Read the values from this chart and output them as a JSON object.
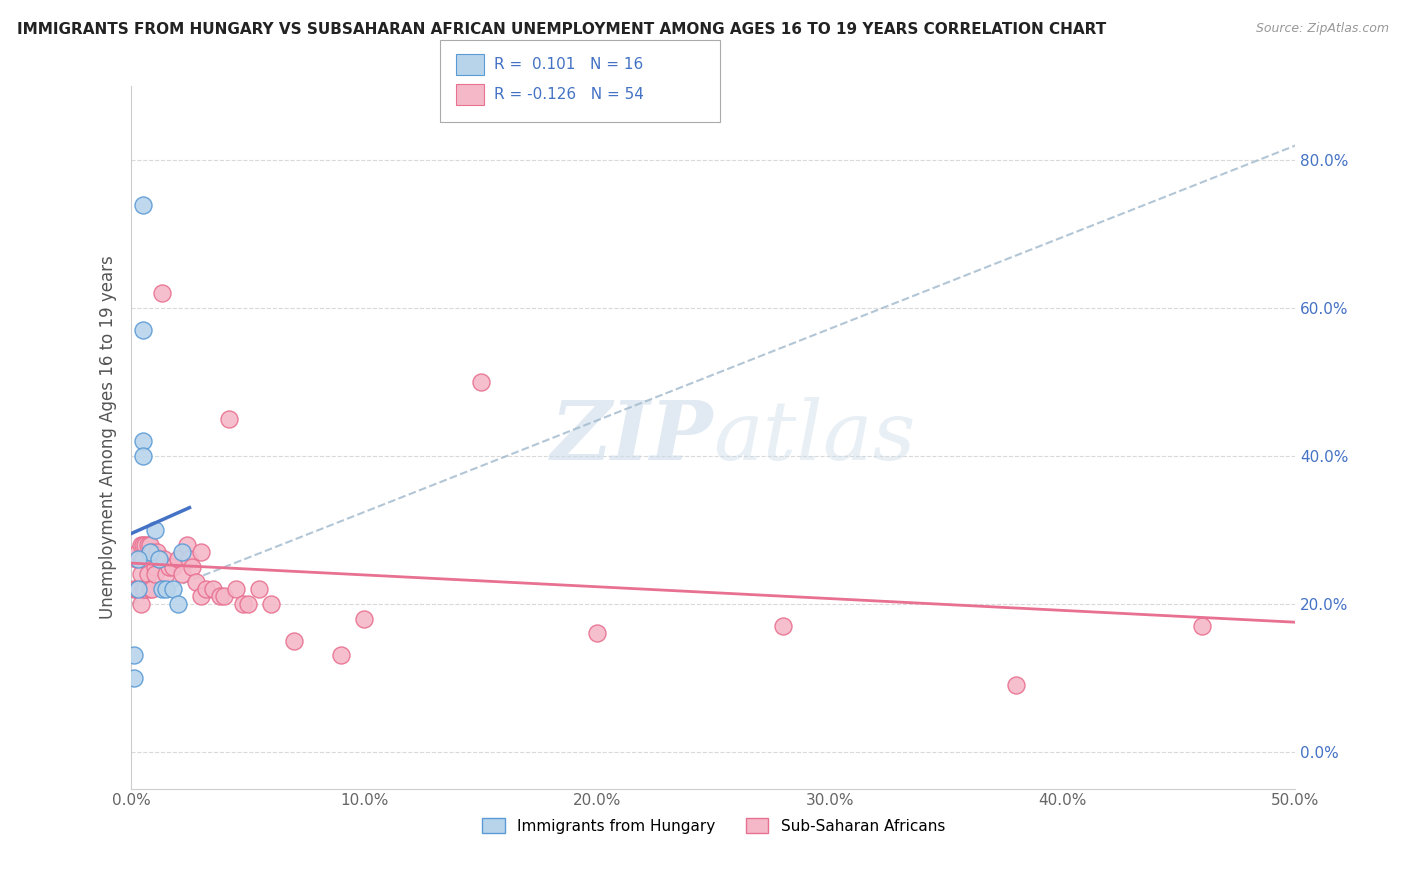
{
  "title": "IMMIGRANTS FROM HUNGARY VS SUBSAHARAN AFRICAN UNEMPLOYMENT AMONG AGES 16 TO 19 YEARS CORRELATION CHART",
  "source": "Source: ZipAtlas.com",
  "ylabel": "Unemployment Among Ages 16 to 19 years",
  "legend_label_1": "Immigrants from Hungary",
  "legend_label_2": "Sub-Saharan Africans",
  "R1": "0.101",
  "N1": "16",
  "R2": "-0.126",
  "N2": "54",
  "xlim": [
    0.0,
    0.5
  ],
  "ylim": [
    -0.05,
    0.9
  ],
  "xticks": [
    0.0,
    0.1,
    0.2,
    0.3,
    0.4,
    0.5
  ],
  "xticklabels": [
    "0.0%",
    "10.0%",
    "20.0%",
    "30.0%",
    "40.0%",
    "50.0%"
  ],
  "yticks": [
    0.0,
    0.2,
    0.4,
    0.6,
    0.8
  ],
  "yticklabels": [
    "0.0%",
    "20.0%",
    "40.0%",
    "60.0%",
    "80.0%"
  ],
  "blue_fill": "#b8d4eb",
  "blue_edge": "#5b9bd5",
  "blue_line": "#4472c4",
  "pink_fill": "#f4b8c8",
  "pink_edge": "#e87090",
  "pink_line": "#e87090",
  "gray_dash": "#a0b8cc",
  "watermark_color": "#cddcea",
  "background": "#ffffff",
  "grid_color": "#d0d0d0",
  "blue_x": [
    0.005,
    0.005,
    0.005,
    0.005,
    0.008,
    0.01,
    0.012,
    0.013,
    0.015,
    0.018,
    0.02,
    0.022,
    0.003,
    0.003,
    0.001,
    0.001
  ],
  "blue_y": [
    0.74,
    0.57,
    0.42,
    0.4,
    0.27,
    0.3,
    0.26,
    0.22,
    0.22,
    0.22,
    0.2,
    0.27,
    0.26,
    0.22,
    0.1,
    0.13
  ],
  "pink_x": [
    0.001,
    0.002,
    0.002,
    0.003,
    0.003,
    0.004,
    0.004,
    0.004,
    0.005,
    0.005,
    0.005,
    0.006,
    0.006,
    0.007,
    0.007,
    0.008,
    0.008,
    0.009,
    0.009,
    0.01,
    0.01,
    0.011,
    0.012,
    0.013,
    0.014,
    0.015,
    0.016,
    0.018,
    0.02,
    0.022,
    0.024,
    0.025,
    0.026,
    0.028,
    0.03,
    0.03,
    0.032,
    0.035,
    0.038,
    0.04,
    0.042,
    0.045,
    0.048,
    0.05,
    0.055,
    0.06,
    0.07,
    0.09,
    0.1,
    0.15,
    0.2,
    0.28,
    0.38,
    0.46
  ],
  "pink_y": [
    0.22,
    0.26,
    0.22,
    0.27,
    0.22,
    0.28,
    0.24,
    0.2,
    0.28,
    0.26,
    0.22,
    0.28,
    0.22,
    0.28,
    0.24,
    0.28,
    0.22,
    0.27,
    0.22,
    0.25,
    0.24,
    0.27,
    0.26,
    0.62,
    0.26,
    0.24,
    0.25,
    0.25,
    0.26,
    0.24,
    0.28,
    0.26,
    0.25,
    0.23,
    0.21,
    0.27,
    0.22,
    0.22,
    0.21,
    0.21,
    0.45,
    0.22,
    0.2,
    0.2,
    0.22,
    0.2,
    0.15,
    0.13,
    0.18,
    0.5,
    0.16,
    0.17,
    0.09,
    0.17
  ],
  "blue_line_x0": 0.0,
  "blue_line_x1": 0.025,
  "blue_line_y0": 0.295,
  "blue_line_y1": 0.33,
  "pink_line_x0": 0.0,
  "pink_line_x1": 0.5,
  "pink_line_y0": 0.255,
  "pink_line_y1": 0.175,
  "dash_line_x0": 0.0,
  "dash_line_x1": 0.5,
  "dash_line_y0": 0.2,
  "dash_line_y1": 0.82
}
